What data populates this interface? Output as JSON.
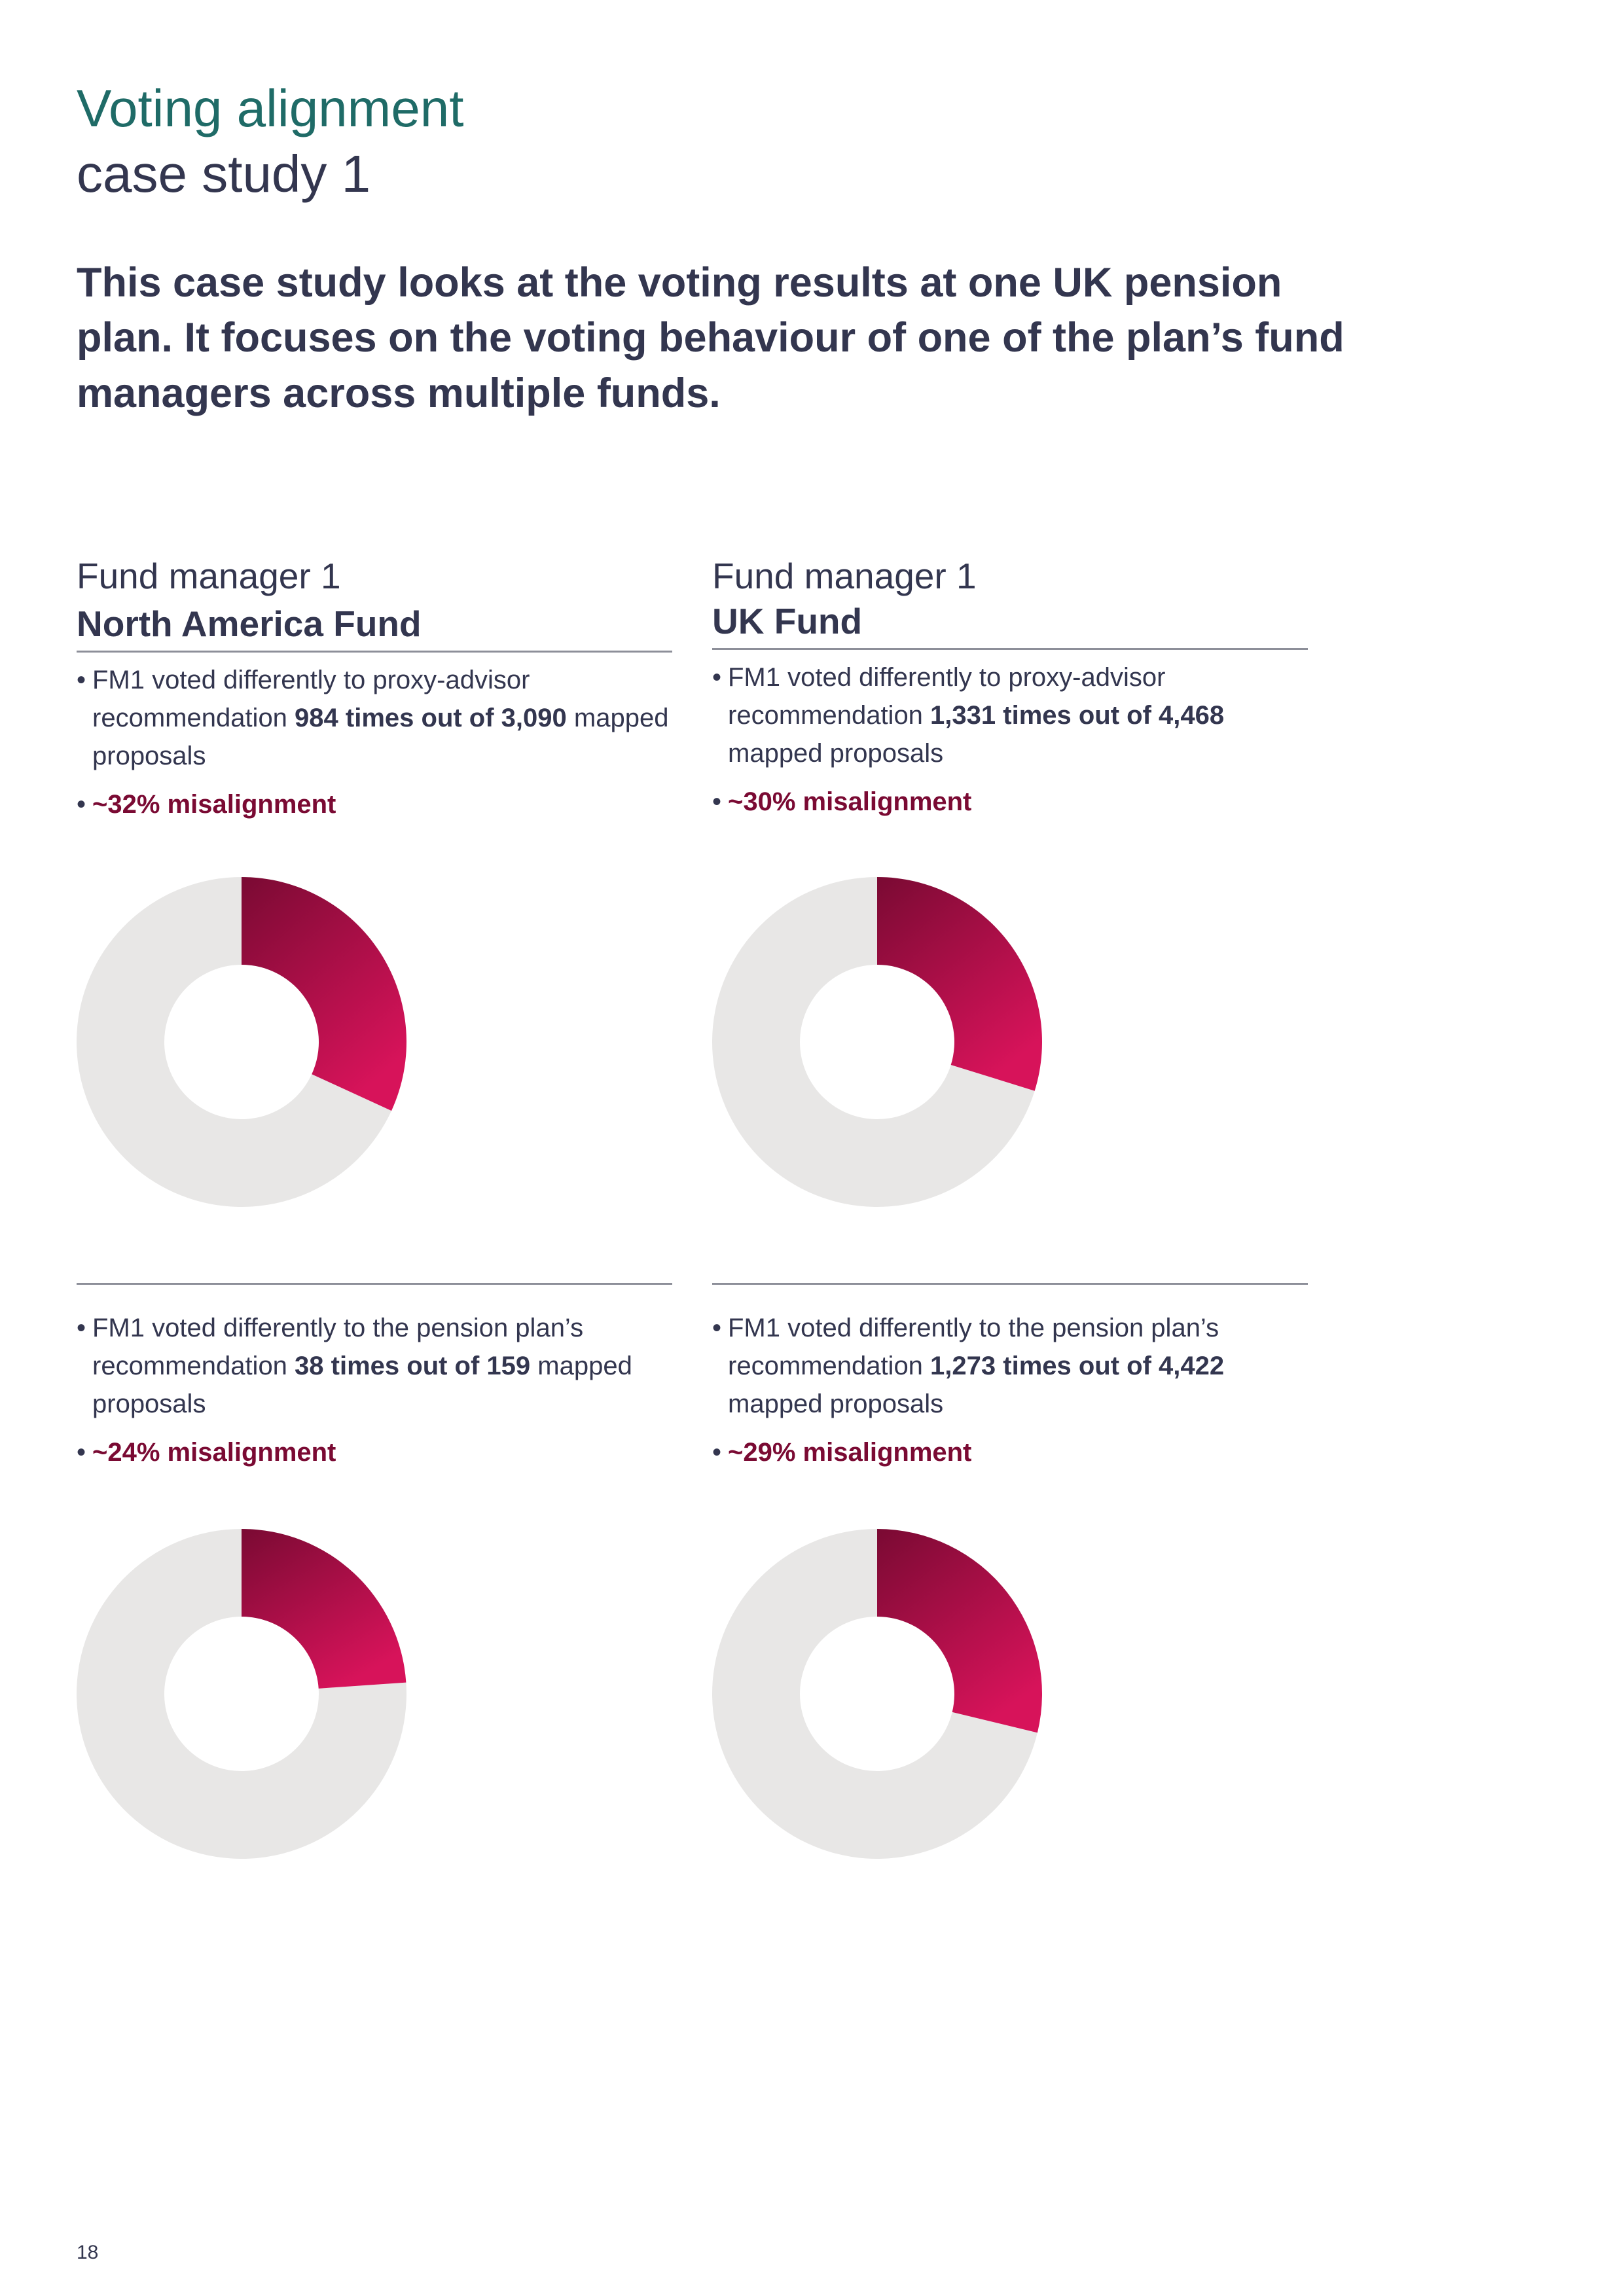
{
  "header": {
    "title_line1": "Voting alignment",
    "title_line2": "case study 1",
    "intro": "This case study looks at the voting results at one UK pension plan. It focuses on the voting behaviour of one of the plan’s fund managers across multiple funds."
  },
  "colors": {
    "accent_title": "#1f6b67",
    "text": "#33364f",
    "misalignment": "#7a0a33",
    "slice_dark": "#7a0a33",
    "slice_light": "#d7135a",
    "remainder": "#e8e7e6"
  },
  "funds": [
    {
      "manager": "Fund manager 1",
      "fund": "North America Fund",
      "proxy": {
        "prefix": "FM1 voted differently to proxy-advisor recommendation ",
        "count": "984 times out of 3,090",
        "suffix": " mapped proposals",
        "misalignment": "~32% misalignment",
        "fraction": 0.318
      },
      "pension": {
        "prefix": "FM1 voted differently to the pension plan’s recommendation ",
        "count": "38 times out of 159",
        "suffix": " mapped proposals",
        "misalignment": "~24% misalignment",
        "fraction": 0.239
      }
    },
    {
      "manager": "Fund manager 1",
      "fund": "UK Fund",
      "proxy": {
        "prefix": "FM1 voted differently to proxy-advisor recommendation ",
        "count": "1,331 times out of 4,468",
        "suffix": " mapped proposals",
        "misalignment": "~30% misalignment",
        "fraction": 0.298
      },
      "pension": {
        "prefix": "FM1 voted differently to the pension plan’s recommendation ",
        "count": "1,273 times out of 4,422",
        "suffix": " mapped proposals",
        "misalignment": "~29% misalignment",
        "fraction": 0.288
      }
    }
  ],
  "chart_data": [
    {
      "type": "pie",
      "categories": [
        "misaligned",
        "aligned"
      ],
      "values": [
        984,
        2106
      ]
    },
    {
      "type": "pie",
      "categories": [
        "misaligned",
        "aligned"
      ],
      "values": [
        1331,
        3137
      ]
    },
    {
      "type": "pie",
      "categories": [
        "misaligned",
        "aligned"
      ],
      "values": [
        38,
        121
      ]
    },
    {
      "type": "pie",
      "categories": [
        "misaligned",
        "aligned"
      ],
      "values": [
        1273,
        3149
      ]
    }
  ],
  "footer": {
    "page_number": "18"
  }
}
